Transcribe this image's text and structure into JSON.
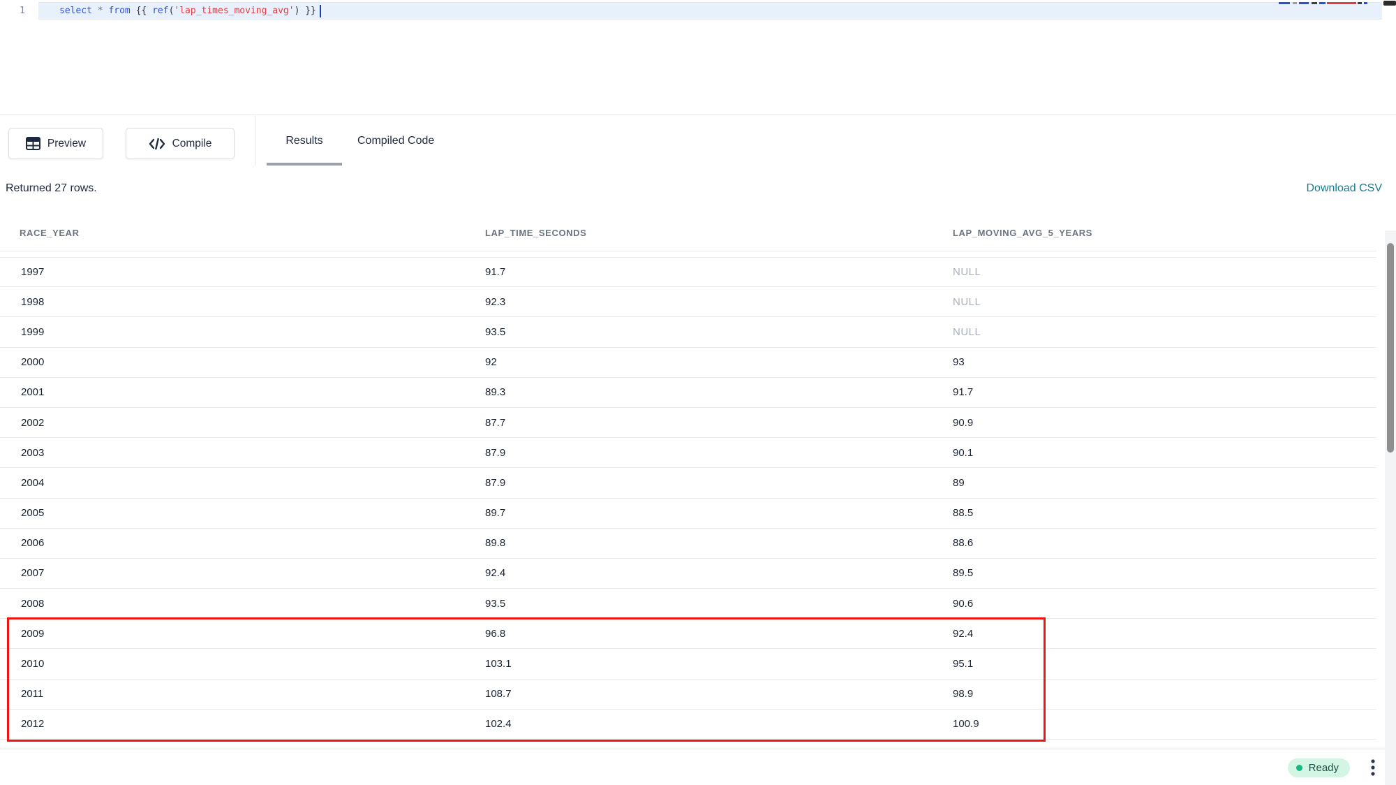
{
  "editor": {
    "line_number": "1",
    "code_tokens": [
      {
        "text": "select",
        "type": "kw"
      },
      {
        "text": " ",
        "type": "pl"
      },
      {
        "text": "*",
        "type": "op"
      },
      {
        "text": " ",
        "type": "pl"
      },
      {
        "text": "from",
        "type": "kw"
      },
      {
        "text": " {{ ",
        "type": "pl"
      },
      {
        "text": "ref",
        "type": "kw"
      },
      {
        "text": "(",
        "type": "pl"
      },
      {
        "text": "'lap_times_moving_avg'",
        "type": "str"
      },
      {
        "text": ")",
        "type": "pl"
      },
      {
        "text": " }}",
        "type": "pl"
      }
    ]
  },
  "toolbar": {
    "preview_label": "Preview",
    "compile_label": "Compile",
    "tabs": [
      {
        "label": "Results",
        "active": true
      },
      {
        "label": "Compiled Code",
        "active": false
      }
    ]
  },
  "results": {
    "summary": "Returned 27 rows.",
    "download_label": "Download CSV",
    "table": {
      "columns": [
        "RACE_YEAR",
        "LAP_TIME_SECONDS",
        "LAP_MOVING_AVG_5_YEARS"
      ],
      "rows": [
        [
          "1997",
          "91.7",
          "NULL"
        ],
        [
          "1998",
          "92.3",
          "NULL"
        ],
        [
          "1999",
          "93.5",
          "NULL"
        ],
        [
          "2000",
          "92",
          "93"
        ],
        [
          "2001",
          "89.3",
          "91.7"
        ],
        [
          "2002",
          "87.7",
          "90.9"
        ],
        [
          "2003",
          "87.9",
          "90.1"
        ],
        [
          "2004",
          "87.9",
          "89"
        ],
        [
          "2005",
          "89.7",
          "88.5"
        ],
        [
          "2006",
          "89.8",
          "88.6"
        ],
        [
          "2007",
          "92.4",
          "89.5"
        ],
        [
          "2008",
          "93.5",
          "90.6"
        ],
        [
          "2009",
          "96.8",
          "92.4"
        ],
        [
          "2010",
          "103.1",
          "95.1"
        ],
        [
          "2011",
          "108.7",
          "98.9"
        ],
        [
          "2012",
          "102.4",
          "100.9"
        ]
      ],
      "annotation": {
        "type": "red-box",
        "first_row": "2009",
        "last_row": "2012"
      }
    }
  },
  "statusbar": {
    "ready_label": "Ready"
  },
  "colors": {
    "keyword_blue": "#2b50d0",
    "string_red": "#e23b41",
    "link_teal": "#147d91",
    "annotation_red": "#ee1512",
    "ready_badge_bg": "#d3f6e4",
    "ready_dot_green": "#16b981"
  }
}
